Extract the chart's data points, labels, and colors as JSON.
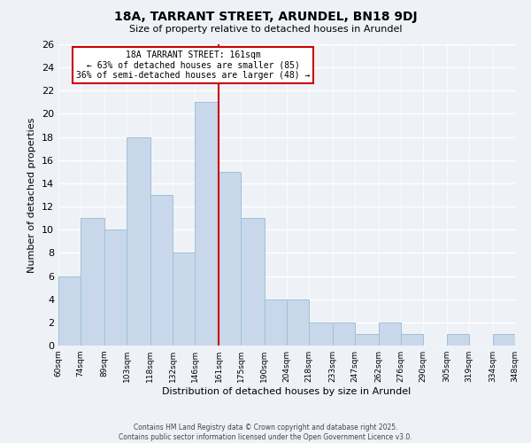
{
  "title": "18A, TARRANT STREET, ARUNDEL, BN18 9DJ",
  "subtitle": "Size of property relative to detached houses in Arundel",
  "xlabel": "Distribution of detached houses by size in Arundel",
  "ylabel": "Number of detached properties",
  "bin_labels": [
    "60sqm",
    "74sqm",
    "89sqm",
    "103sqm",
    "118sqm",
    "132sqm",
    "146sqm",
    "161sqm",
    "175sqm",
    "190sqm",
    "204sqm",
    "218sqm",
    "233sqm",
    "247sqm",
    "262sqm",
    "276sqm",
    "290sqm",
    "305sqm",
    "319sqm",
    "334sqm",
    "348sqm"
  ],
  "bin_edges": [
    60,
    74,
    89,
    103,
    118,
    132,
    146,
    161,
    175,
    190,
    204,
    218,
    233,
    247,
    262,
    276,
    290,
    305,
    319,
    334,
    348
  ],
  "counts": [
    6,
    11,
    10,
    18,
    13,
    8,
    21,
    15,
    11,
    4,
    4,
    2,
    2,
    1,
    2,
    1,
    0,
    1,
    0,
    1
  ],
  "bar_color": "#c8d8ea",
  "bar_edge_color": "#a0c0d8",
  "property_size": 161,
  "vline_color": "#cc0000",
  "annotation_title": "18A TARRANT STREET: 161sqm",
  "annotation_line1": "← 63% of detached houses are smaller (85)",
  "annotation_line2": "36% of semi-detached houses are larger (48) →",
  "annotation_box_edge": "#cc0000",
  "ylim": [
    0,
    26
  ],
  "yticks": [
    0,
    2,
    4,
    6,
    8,
    10,
    12,
    14,
    16,
    18,
    20,
    22,
    24,
    26
  ],
  "footer_line1": "Contains HM Land Registry data © Crown copyright and database right 2025.",
  "footer_line2": "Contains public sector information licensed under the Open Government Licence v3.0.",
  "background_color": "#eef2f7"
}
